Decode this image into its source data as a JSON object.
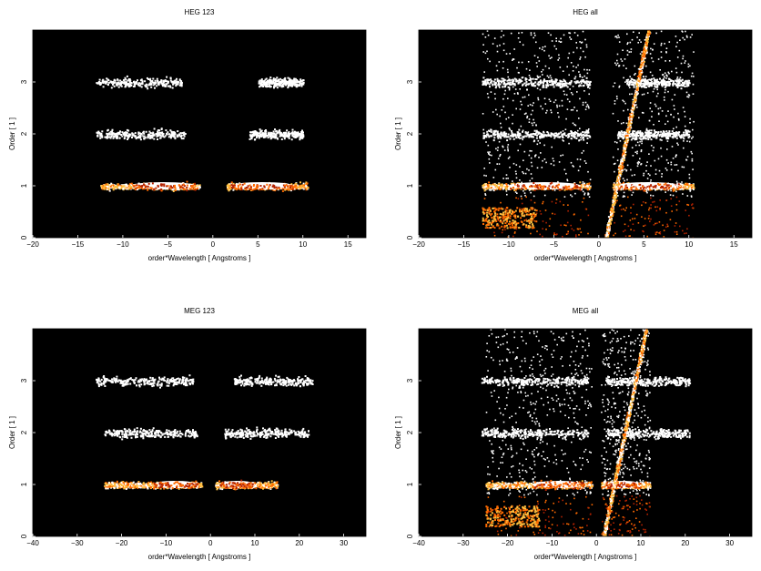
{
  "figure": {
    "background": "#ffffff",
    "panel_background": "#000000",
    "colormap": [
      "#000000",
      "#5a0a00",
      "#b32200",
      "#ff6a00",
      "#ffc040",
      "#ffffff"
    ]
  },
  "chart_data": [
    {
      "type": "heatmap",
      "title": "HEG 123",
      "xlabel": "order*Wavelength [ Angstroms ]",
      "ylabel": "Order [ 1 ]",
      "xlim": [
        -20,
        17
      ],
      "ylim": [
        0,
        4
      ],
      "xticks": [
        -20,
        -15,
        -10,
        -5,
        0,
        5,
        10,
        15
      ],
      "yticks": [
        0,
        1,
        2,
        3
      ],
      "bands": [
        {
          "order": 1,
          "x_ranges": [
            [
              -12.5,
              -1.5
            ],
            [
              1.5,
              10.5
            ]
          ],
          "intensity": "high",
          "core_ranges": [
            [
              -9,
              -2
            ],
            [
              2,
              9
            ]
          ]
        },
        {
          "order": 2,
          "x_ranges": [
            [
              -13,
              -3
            ],
            [
              4,
              10
            ]
          ],
          "intensity": "low"
        },
        {
          "order": 3,
          "x_ranges": [
            [
              -13,
              -3.5
            ],
            [
              5,
              10
            ]
          ],
          "intensity": "low"
        }
      ],
      "zero_order_streak": false
    },
    {
      "type": "heatmap",
      "title": "HEG all",
      "xlabel": "order*Wavelength [ Angstroms ]",
      "ylabel": "Order [ 1 ]",
      "xlim": [
        -20,
        17
      ],
      "ylim": [
        0,
        4
      ],
      "xticks": [
        -20,
        -15,
        -10,
        -5,
        0,
        5,
        10,
        15
      ],
      "yticks": [
        0,
        1,
        2,
        3
      ],
      "bands": [
        {
          "order": 1,
          "x_ranges": [
            [
              -13,
              -1
            ],
            [
              1.5,
              10.5
            ]
          ],
          "intensity": "high",
          "core_ranges": [
            [
              -10,
              -2
            ],
            [
              2,
              9
            ]
          ]
        },
        {
          "order": 2,
          "x_ranges": [
            [
              -13,
              -1
            ],
            [
              2,
              10
            ]
          ],
          "intensity": "low"
        },
        {
          "order": 3,
          "x_ranges": [
            [
              -13,
              -1
            ],
            [
              3,
              10
            ]
          ],
          "intensity": "low"
        }
      ],
      "zero_order_streak": true
    },
    {
      "type": "heatmap",
      "title": "MEG 123",
      "xlabel": "order*Wavelength [ Angstroms ]",
      "ylabel": "Order [ 1 ]",
      "xlim": [
        -40,
        35
      ],
      "ylim": [
        0,
        4
      ],
      "xticks": [
        -40,
        -30,
        -20,
        -10,
        0,
        10,
        20,
        30
      ],
      "yticks": [
        0,
        1,
        2,
        3
      ],
      "bands": [
        {
          "order": 1,
          "x_ranges": [
            [
              -24,
              -2
            ],
            [
              1,
              15
            ]
          ],
          "intensity": "high",
          "core_ranges": [
            [
              -13,
              -3
            ],
            [
              2,
              10
            ]
          ]
        },
        {
          "order": 2,
          "x_ranges": [
            [
              -24,
              -3
            ],
            [
              3,
              22
            ]
          ],
          "intensity": "low"
        },
        {
          "order": 3,
          "x_ranges": [
            [
              -26,
              -4
            ],
            [
              5,
              23
            ]
          ],
          "intensity": "low"
        }
      ],
      "zero_order_streak": false
    },
    {
      "type": "heatmap",
      "title": "MEG all",
      "xlabel": "order*Wavelength [ Angstroms ]",
      "ylabel": "Order [ 1 ]",
      "xlim": [
        -40,
        35
      ],
      "ylim": [
        0,
        4
      ],
      "xticks": [
        -40,
        -30,
        -20,
        -10,
        0,
        10,
        20,
        30
      ],
      "yticks": [
        0,
        1,
        2,
        3
      ],
      "bands": [
        {
          "order": 1,
          "x_ranges": [
            [
              -25,
              -1
            ],
            [
              1,
              12
            ]
          ],
          "intensity": "high",
          "core_ranges": [
            [
              -14,
              -3
            ],
            [
              2,
              10
            ]
          ]
        },
        {
          "order": 2,
          "x_ranges": [
            [
              -26,
              -2
            ],
            [
              2,
              21
            ]
          ],
          "intensity": "low"
        },
        {
          "order": 3,
          "x_ranges": [
            [
              -26,
              -2
            ],
            [
              2,
              21
            ]
          ],
          "intensity": "low"
        }
      ],
      "zero_order_streak": true
    }
  ]
}
